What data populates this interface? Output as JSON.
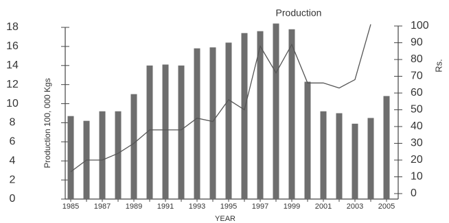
{
  "chart_data": {
    "type": "bar_line",
    "annotation": "Production",
    "xlabel": "YEAR",
    "ylabel": "Production 100, 000 Kgs",
    "y2label": "Rs.",
    "categories": [
      "1985",
      null,
      "1987",
      null,
      "1989",
      null,
      "1991",
      null,
      "1993",
      null,
      "1995",
      null,
      "1997",
      null,
      "1999",
      null,
      "2001",
      null,
      "2003",
      null,
      "2005"
    ],
    "series": [
      {
        "name": "Production",
        "color": "#6e6e6e",
        "values": [
          8.7,
          8.2,
          9.2,
          9.2,
          11,
          14,
          14.1,
          14,
          15.8,
          15.9,
          16.4,
          17.4,
          17.6,
          18.4,
          17.8,
          12.3,
          9.2,
          9,
          7.9,
          8.5,
          10.8
        ]
      },
      {
        "name": "Rs.",
        "color": "#555555",
        "axis": "y2",
        "values": [
          13,
          20,
          20,
          24,
          30,
          38,
          38,
          38,
          45,
          43,
          56,
          50,
          88,
          72,
          89,
          66,
          66,
          63,
          68,
          101,
          null
        ]
      }
    ],
    "ylim": [
      0,
      18
    ],
    "yticks": [
      0,
      2,
      4,
      6,
      8,
      10,
      12,
      14,
      16,
      18
    ],
    "y2lim": [
      0,
      100
    ],
    "y2ticks": [
      0,
      10,
      20,
      30,
      40,
      50,
      60,
      70,
      80,
      90,
      100
    ]
  }
}
